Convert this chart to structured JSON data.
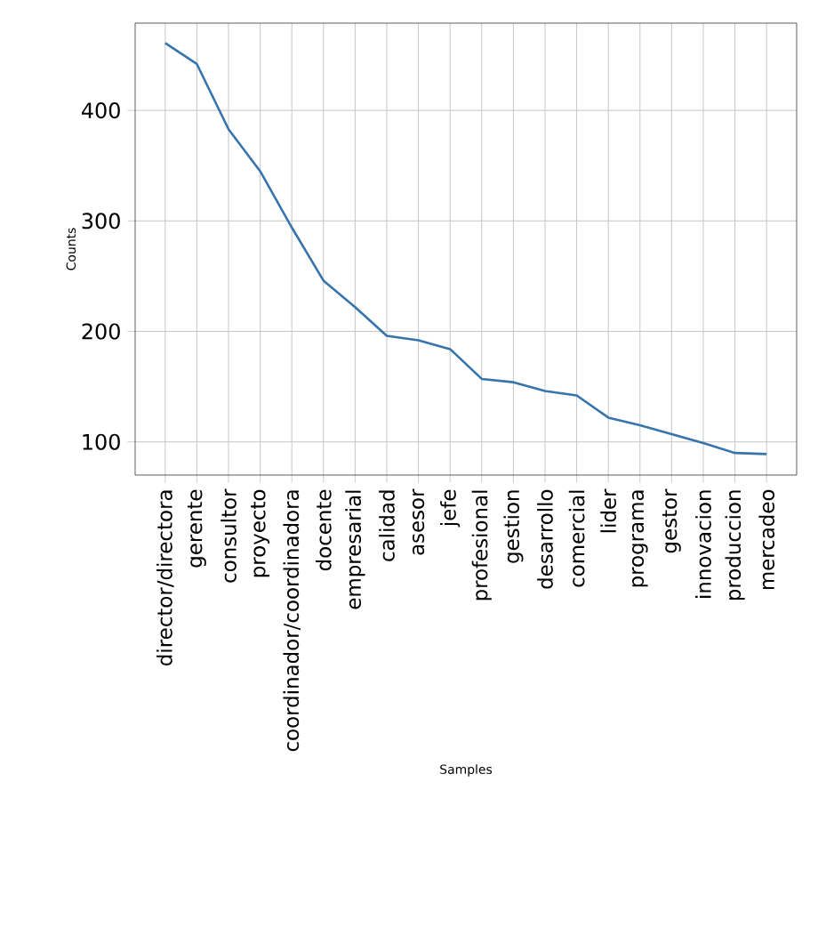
{
  "chart_data": {
    "type": "line",
    "xlabel": "Samples",
    "ylabel": "Counts",
    "categories": [
      "director/directora",
      "gerente",
      "consultor",
      "proyecto",
      "coordinador/coordinadora",
      "docente",
      "empresarial",
      "calidad",
      "asesor",
      "jefe",
      "profesional",
      "gestion",
      "desarrollo",
      "comercial",
      "lider",
      "programa",
      "gestor",
      "innovacion",
      "produccion",
      "mercadeo"
    ],
    "series": [
      {
        "color": "#3674ab",
        "values": [
          461,
          442,
          383,
          345,
          294,
          246,
          222,
          196,
          192,
          184,
          157,
          154,
          146,
          142,
          122,
          115,
          107,
          99,
          90,
          89
        ]
      }
    ],
    "ylim": [
      70,
      479
    ],
    "yticks": [
      100,
      200,
      300,
      400
    ],
    "grid": true,
    "line_style": "solid",
    "marker": "none"
  }
}
